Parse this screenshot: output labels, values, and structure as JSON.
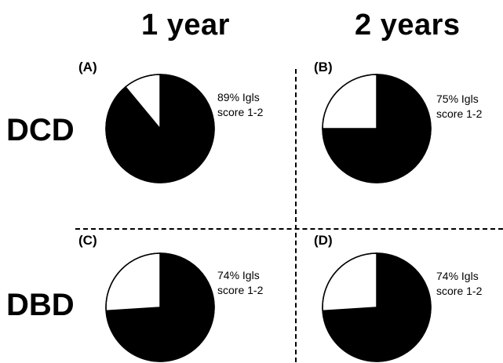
{
  "headers": {
    "columns": [
      "1 year",
      "2 years"
    ],
    "rows": [
      "DCD",
      "DBD"
    ]
  },
  "chart_data": [
    {
      "type": "pie",
      "panel": "(A)",
      "row": "DCD",
      "column": "1 year",
      "slices": [
        {
          "label": "Igls score 1-2",
          "value": 89,
          "color": "#000000"
        },
        {
          "label": "",
          "value": 11,
          "color": "#ffffff"
        }
      ],
      "annotation": [
        "89% Igls",
        "score 1-2"
      ]
    },
    {
      "type": "pie",
      "panel": "(B)",
      "row": "DCD",
      "column": "2 years",
      "slices": [
        {
          "label": "Igls score 1-2",
          "value": 75,
          "color": "#000000"
        },
        {
          "label": "",
          "value": 25,
          "color": "#ffffff"
        }
      ],
      "annotation": [
        "75% Igls",
        "score 1-2"
      ]
    },
    {
      "type": "pie",
      "panel": "(C)",
      "row": "DBD",
      "column": "1 year",
      "slices": [
        {
          "label": "Igls score 1-2",
          "value": 74,
          "color": "#000000"
        },
        {
          "label": "",
          "value": 26,
          "color": "#ffffff"
        }
      ],
      "annotation": [
        "74% Igls",
        "score 1-2"
      ]
    },
    {
      "type": "pie",
      "panel": "(D)",
      "row": "DBD",
      "column": "2 years",
      "slices": [
        {
          "label": "Igls score 1-2",
          "value": 74,
          "color": "#000000"
        },
        {
          "label": "",
          "value": 26,
          "color": "#ffffff"
        }
      ],
      "annotation": [
        "74% Igls",
        "score 1-2"
      ]
    }
  ]
}
